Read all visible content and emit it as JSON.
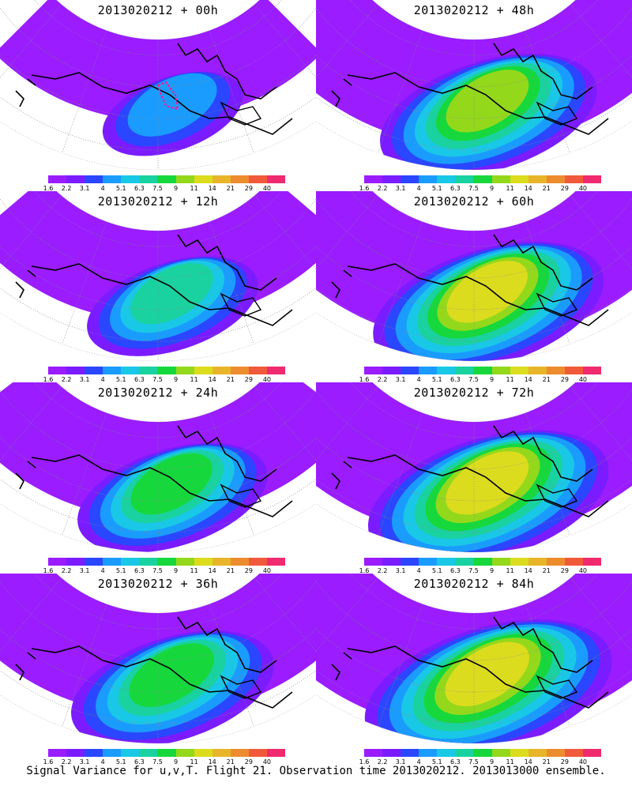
{
  "footer": "Signal Variance for u,v,T. Flight 21. Observation time 2013020212. 2013013000 ensemble.",
  "panels": [
    {
      "title": "2013020212 + 00h",
      "level": 0.15,
      "target_box": true
    },
    {
      "title": "2013020212 + 48h",
      "level": 0.55
    },
    {
      "title": "2013020212 + 12h",
      "level": 0.3
    },
    {
      "title": "2013020212 + 60h",
      "level": 0.62
    },
    {
      "title": "2013020212 + 24h",
      "level": 0.4
    },
    {
      "title": "2013020212 + 72h",
      "level": 0.68
    },
    {
      "title": "2013020212 + 36h",
      "level": 0.48
    },
    {
      "title": "2013020212 + 84h",
      "level": 0.72
    }
  ],
  "colorbar": {
    "labels": [
      "1.6",
      "2.2",
      "3.1",
      "4",
      "5.1",
      "6.3",
      "7.5",
      "9",
      "11",
      "14",
      "21",
      "29",
      "40"
    ],
    "colors": [
      "#9a1cff",
      "#7a1cff",
      "#2a46ff",
      "#1a9cff",
      "#19c8e6",
      "#19d2a0",
      "#16d83c",
      "#94d81c",
      "#dcdc1e",
      "#e8b42a",
      "#ec8c2e",
      "#f05a3a",
      "#f02a6e"
    ]
  }
}
